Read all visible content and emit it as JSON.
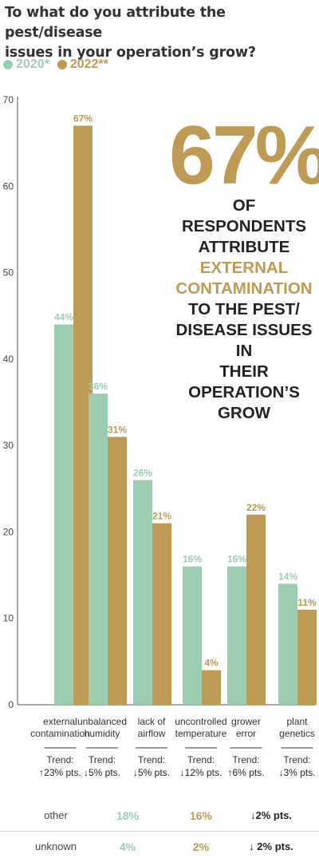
{
  "title_line1": "To what do you attribute the pest/disease",
  "title_line2": "issues in your operation’s grow?",
  "colors": {
    "series_2020": "#9ccdb1",
    "series_2022": "#bd9b55",
    "axis": "#555555",
    "text": "#2b2b2b"
  },
  "chart_data": {
    "type": "bar",
    "title": "To what do you attribute the pest/disease issues in your operation’s grow?",
    "categories": [
      "external contamination",
      "unbalanced humidity",
      "lack of airflow",
      "uncontrolled temperature",
      "grower error",
      "plant genetics"
    ],
    "category_lines": [
      [
        "external",
        "contamination"
      ],
      [
        "unbalanced",
        "humidity"
      ],
      [
        "lack of",
        "airflow"
      ],
      [
        "uncontrolled",
        "temperature"
      ],
      [
        "grower",
        "error"
      ],
      [
        "plant",
        "genetics"
      ]
    ],
    "series": [
      {
        "name": "2020*",
        "values": [
          44,
          36,
          26,
          16,
          16,
          14
        ],
        "labels": [
          "44%",
          "36%",
          "26%",
          "16%",
          "16%",
          "14%"
        ]
      },
      {
        "name": "2022**",
        "values": [
          67,
          31,
          21,
          4,
          22,
          11
        ],
        "labels": [
          "67%",
          "31%",
          "21%",
          "4%",
          "22%",
          "11%"
        ]
      }
    ],
    "trend_label": "Trend:",
    "trends": [
      "↑23% pts.",
      "↓5% pts.",
      "↓5% pts.",
      "↓12% pts.",
      "↑6% pts.",
      "↓3% pts."
    ],
    "ylim": [
      0,
      70
    ],
    "yticks": [
      0,
      10,
      20,
      30,
      40,
      50,
      60,
      70
    ],
    "grid": false,
    "legend_position": "top-left"
  },
  "callout": {
    "big": "67%",
    "lines": [
      {
        "text": "OF RESPONDENTS",
        "accent": false
      },
      {
        "text": "ATTRIBUTE",
        "accent": false
      },
      {
        "text": "EXTERNAL",
        "accent": true
      },
      {
        "text": "CONTAMINATION",
        "accent": true
      },
      {
        "text": "TO THE PEST/",
        "accent": false
      },
      {
        "text": "DISEASE ISSUES IN",
        "accent": false
      },
      {
        "text": "THEIR OPERATION’S",
        "accent": false
      },
      {
        "text": "GROW",
        "accent": false
      }
    ]
  },
  "extra_rows": [
    {
      "label": "other",
      "v2020": "18%",
      "v2022": "16%",
      "trend": "↓2% pts."
    },
    {
      "label": "unknown",
      "v2020": "4%",
      "v2022": "2%",
      "trend": "↓ 2% pts."
    }
  ]
}
